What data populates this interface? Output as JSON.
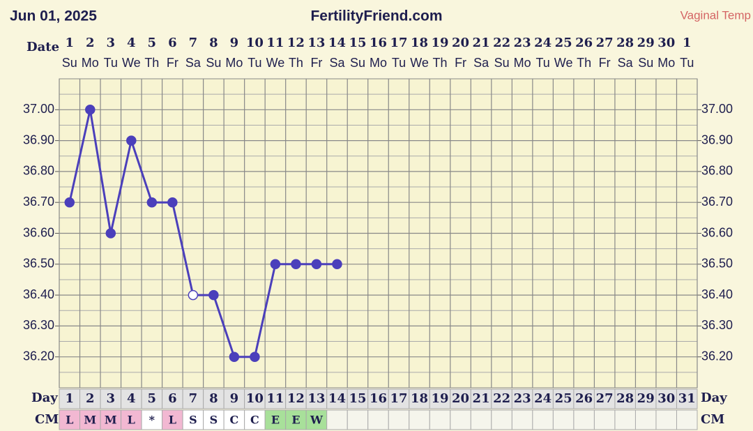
{
  "chart_data": {
    "type": "line",
    "title": "FertilityFriend.com",
    "date_label": "Jun 01, 2025",
    "temp_label": "Vaginal Temp",
    "row_labels": {
      "date": "Date",
      "day": "Day",
      "cm": "CM"
    },
    "categories": [
      1,
      2,
      3,
      4,
      5,
      6,
      7,
      8,
      9,
      10,
      11,
      12,
      13,
      14,
      15,
      16,
      17,
      18,
      19,
      20,
      21,
      22,
      23,
      24,
      25,
      26,
      27,
      28,
      29,
      30,
      1
    ],
    "weekdays": [
      "Su",
      "Mo",
      "Tu",
      "We",
      "Th",
      "Fr",
      "Sa",
      "Su",
      "Mo",
      "Tu",
      "We",
      "Th",
      "Fr",
      "Sa",
      "Su",
      "Mo",
      "Tu",
      "We",
      "Th",
      "Fr",
      "Sa",
      "Su",
      "Mo",
      "Tu",
      "We",
      "Th",
      "Fr",
      "Sa",
      "Su",
      "Mo",
      "Tu"
    ],
    "days": [
      1,
      2,
      3,
      4,
      5,
      6,
      7,
      8,
      9,
      10,
      11,
      12,
      13,
      14,
      15,
      16,
      17,
      18,
      19,
      20,
      21,
      22,
      23,
      24,
      25,
      26,
      27,
      28,
      29,
      30,
      31
    ],
    "cm": [
      "L",
      "M",
      "M",
      "L",
      "*",
      "L",
      "S",
      "S",
      "C",
      "C",
      "E",
      "E",
      "W",
      null,
      null,
      null,
      null,
      null,
      null,
      null,
      null,
      null,
      null,
      null,
      null,
      null,
      null,
      null,
      null,
      null,
      null
    ],
    "cm_colors": {
      "L": "#f2b8d2",
      "M": "#f2b8d2",
      "*": "#ffffff",
      "S": "#ffffff",
      "C": "#ffffff",
      "E": "#a8e09a",
      "W": "#a8e09a"
    },
    "values": [
      36.7,
      37.0,
      36.6,
      36.9,
      36.7,
      36.7,
      36.4,
      36.4,
      36.2,
      36.2,
      36.5,
      36.5,
      36.5,
      36.5,
      null,
      null,
      null,
      null,
      null,
      null,
      null,
      null,
      null,
      null,
      null,
      null,
      null,
      null,
      null,
      null,
      null
    ],
    "markers": [
      "filled",
      "filled",
      "filled",
      "filled",
      "filled",
      "filled",
      "open",
      "filled",
      "filled",
      "filled",
      "filled",
      "filled",
      "filled",
      "filled",
      null,
      null,
      null,
      null,
      null,
      null,
      null,
      null,
      null,
      null,
      null,
      null,
      null,
      null,
      null,
      null,
      null
    ],
    "color": "#4b3fbb",
    "ylim": [
      36.1,
      37.1
    ],
    "yticks": [
      {
        "value": 36.2,
        "label": "36.20"
      },
      {
        "value": 36.3,
        "label": "36.30"
      },
      {
        "value": 36.4,
        "label": "36.40"
      },
      {
        "value": 36.5,
        "label": "36.50"
      },
      {
        "value": 36.6,
        "label": "36.60"
      },
      {
        "value": 36.7,
        "label": "36.70"
      },
      {
        "value": 36.8,
        "label": "36.80"
      },
      {
        "value": 36.9,
        "label": "36.90"
      },
      {
        "value": 37.0,
        "label": "37.00"
      }
    ],
    "grid": true
  }
}
